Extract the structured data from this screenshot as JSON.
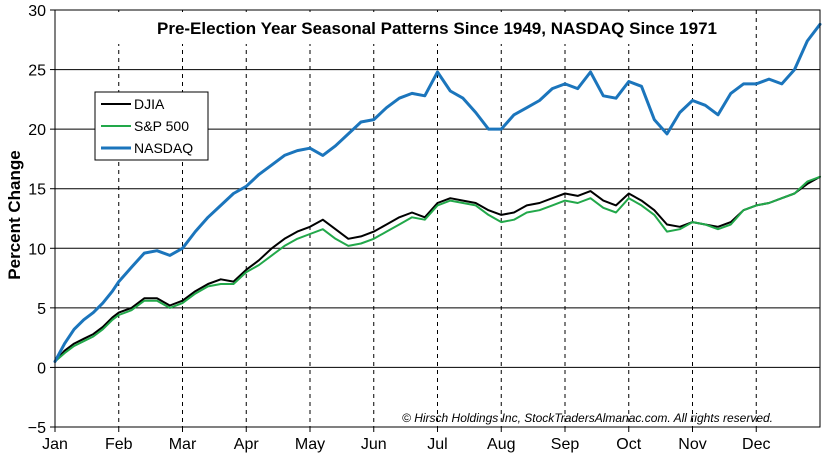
{
  "chart_data": {
    "type": "line",
    "title": "Pre-Election Year Seasonal Patterns Since 1949, NASDAQ Since 1971",
    "ylabel": "Percent Change",
    "xlabel": "",
    "copyright": "© Hirsch Holdings Inc, StockTradersAlmanac.com. All rights reserved.",
    "ylim": [
      -5,
      30
    ],
    "yticks": [
      -5,
      0,
      5,
      10,
      15,
      20,
      25,
      30
    ],
    "months": [
      "Jan",
      "Feb",
      "Mar",
      "Apr",
      "May",
      "Jun",
      "Jul",
      "Aug",
      "Sep",
      "Oct",
      "Nov",
      "Dec"
    ],
    "grid": "horizontal solid, vertical dashed at month starts",
    "legend_position": "upper-left",
    "series": [
      {
        "name": "DJIA",
        "color": "#000000",
        "x": [
          0,
          0.15,
          0.3,
          0.45,
          0.6,
          0.75,
          0.9,
          1.0,
          1.2,
          1.4,
          1.6,
          1.8,
          2.0,
          2.2,
          2.4,
          2.6,
          2.8,
          3.0,
          3.2,
          3.4,
          3.6,
          3.8,
          4.0,
          4.2,
          4.4,
          4.6,
          4.8,
          5.0,
          5.2,
          5.4,
          5.6,
          5.8,
          6.0,
          6.2,
          6.4,
          6.6,
          6.8,
          7.0,
          7.2,
          7.4,
          7.6,
          7.8,
          8.0,
          8.2,
          8.4,
          8.6,
          8.8,
          9.0,
          9.2,
          9.4,
          9.6,
          9.8,
          10.0,
          10.2,
          10.4,
          10.6,
          10.8,
          11.0,
          11.2,
          11.4,
          11.6,
          11.8,
          12.0
        ],
        "values": [
          0.5,
          1.4,
          2.0,
          2.4,
          2.8,
          3.4,
          4.2,
          4.6,
          5.0,
          5.8,
          5.8,
          5.2,
          5.6,
          6.4,
          7.0,
          7.4,
          7.2,
          8.2,
          9.0,
          10.0,
          10.8,
          11.4,
          11.8,
          12.4,
          11.6,
          10.8,
          11.0,
          11.4,
          12.0,
          12.6,
          13.0,
          12.6,
          13.8,
          14.2,
          14.0,
          13.8,
          13.2,
          12.8,
          13.0,
          13.6,
          13.8,
          14.2,
          14.6,
          14.4,
          14.8,
          14.0,
          13.6,
          14.6,
          14.0,
          13.2,
          12.0,
          11.8,
          12.2,
          12.0,
          11.8,
          12.2,
          13.2,
          13.6,
          13.8,
          14.2,
          14.6,
          15.4,
          16.0
        ]
      },
      {
        "name": "S&P 500",
        "color": "#22a84a",
        "x": [
          0,
          0.15,
          0.3,
          0.45,
          0.6,
          0.75,
          0.9,
          1.0,
          1.2,
          1.4,
          1.6,
          1.8,
          2.0,
          2.2,
          2.4,
          2.6,
          2.8,
          3.0,
          3.2,
          3.4,
          3.6,
          3.8,
          4.0,
          4.2,
          4.4,
          4.6,
          4.8,
          5.0,
          5.2,
          5.4,
          5.6,
          5.8,
          6.0,
          6.2,
          6.4,
          6.6,
          6.8,
          7.0,
          7.2,
          7.4,
          7.6,
          7.8,
          8.0,
          8.2,
          8.4,
          8.6,
          8.8,
          9.0,
          9.2,
          9.4,
          9.6,
          9.8,
          10.0,
          10.2,
          10.4,
          10.6,
          10.8,
          11.0,
          11.2,
          11.4,
          11.6,
          11.8,
          12.0
        ],
        "values": [
          0.5,
          1.2,
          1.8,
          2.2,
          2.6,
          3.2,
          4.0,
          4.4,
          4.8,
          5.6,
          5.6,
          5.0,
          5.4,
          6.2,
          6.8,
          7.0,
          7.0,
          8.0,
          8.6,
          9.4,
          10.2,
          10.8,
          11.2,
          11.6,
          10.8,
          10.2,
          10.4,
          10.8,
          11.4,
          12.0,
          12.6,
          12.4,
          13.6,
          14.0,
          13.8,
          13.6,
          12.8,
          12.2,
          12.4,
          13.0,
          13.2,
          13.6,
          14.0,
          13.8,
          14.2,
          13.4,
          13.0,
          14.2,
          13.6,
          12.8,
          11.4,
          11.6,
          12.2,
          12.0,
          11.6,
          12.0,
          13.2,
          13.6,
          13.8,
          14.2,
          14.6,
          15.6,
          16.0
        ]
      },
      {
        "name": "NASDAQ",
        "color": "#1b75bc",
        "x": [
          0,
          0.15,
          0.3,
          0.45,
          0.6,
          0.75,
          0.9,
          1.0,
          1.2,
          1.4,
          1.6,
          1.8,
          2.0,
          2.2,
          2.4,
          2.6,
          2.8,
          3.0,
          3.2,
          3.4,
          3.6,
          3.8,
          4.0,
          4.2,
          4.4,
          4.6,
          4.8,
          5.0,
          5.2,
          5.4,
          5.6,
          5.8,
          6.0,
          6.2,
          6.4,
          6.6,
          6.8,
          7.0,
          7.2,
          7.4,
          7.6,
          7.8,
          8.0,
          8.2,
          8.4,
          8.6,
          8.8,
          9.0,
          9.2,
          9.4,
          9.6,
          9.8,
          10.0,
          10.2,
          10.4,
          10.6,
          10.8,
          11.0,
          11.2,
          11.4,
          11.6,
          11.8,
          12.0
        ],
        "values": [
          0.5,
          2.0,
          3.2,
          4.0,
          4.6,
          5.4,
          6.4,
          7.2,
          8.4,
          9.6,
          9.8,
          9.4,
          10.0,
          11.4,
          12.6,
          13.6,
          14.6,
          15.2,
          16.2,
          17.0,
          17.8,
          18.2,
          18.4,
          17.8,
          18.6,
          19.6,
          20.6,
          20.8,
          21.8,
          22.6,
          23.0,
          22.8,
          24.8,
          23.2,
          22.6,
          21.4,
          20.0,
          20.0,
          21.2,
          21.8,
          22.4,
          23.4,
          23.8,
          23.4,
          24.8,
          22.8,
          22.6,
          24.0,
          23.6,
          20.8,
          19.6,
          21.4,
          22.4,
          22.0,
          21.2,
          23.0,
          23.8,
          23.8,
          24.2,
          23.8,
          25.0,
          27.4,
          28.8
        ]
      }
    ]
  }
}
